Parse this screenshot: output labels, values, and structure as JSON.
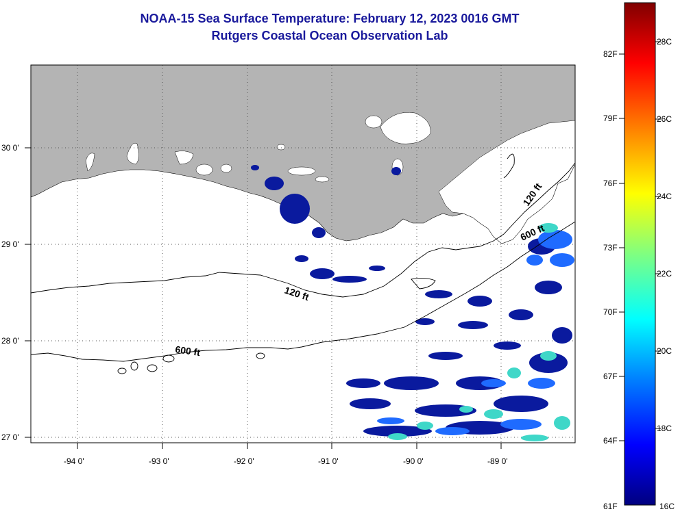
{
  "title": {
    "line1": "NOAA-15 Sea Surface Temperature:  February 12, 2023 0016 GMT",
    "line2": "Rutgers Coastal Ocean Observation Lab"
  },
  "map": {
    "lon_range": [
      -94.55,
      -88.3
    ],
    "lat_range": [
      26.98,
      28.0,
      30.9
    ],
    "lat_ticks": [
      {
        "lat": 30.0,
        "label": "30 0'"
      },
      {
        "lat": 29.0,
        "label": "29 0'"
      },
      {
        "lat": 28.0,
        "label": "28 0'"
      },
      {
        "lat": 27.0,
        "label": "27 0'"
      }
    ],
    "lon_ticks": [
      {
        "lon": -94.0,
        "label": "-94 0'"
      },
      {
        "lon": -93.0,
        "label": "-93 0'"
      },
      {
        "lon": -92.0,
        "label": "-92 0'"
      },
      {
        "lon": -91.0,
        "label": "-91 0'"
      },
      {
        "lon": -90.0,
        "label": "-90 0'"
      },
      {
        "lon": -89.0,
        "label": "-89 0'"
      }
    ],
    "contour_labels": [
      {
        "text": "120 ft"
      },
      {
        "text": "120 ft"
      },
      {
        "text": "600 ft"
      },
      {
        "text": "600 ft"
      }
    ],
    "colors": {
      "land": "#b4b4b4",
      "grid": "#555555",
      "sst_cold": "#0a1a9e",
      "sst_mid": "#1f6bff",
      "sst_warm": "#3fd7c8"
    }
  },
  "colorbar": {
    "fahrenheit": [
      {
        "value": "82F"
      },
      {
        "value": "79F"
      },
      {
        "value": "76F"
      },
      {
        "value": "73F"
      },
      {
        "value": "70F"
      },
      {
        "value": "67F"
      },
      {
        "value": "64F"
      },
      {
        "value": "61F"
      }
    ],
    "celsius": [
      {
        "value": "28C"
      },
      {
        "value": "26C"
      },
      {
        "value": "24C"
      },
      {
        "value": "22C"
      },
      {
        "value": "20C"
      },
      {
        "value": "18C"
      },
      {
        "value": "16C"
      }
    ]
  }
}
